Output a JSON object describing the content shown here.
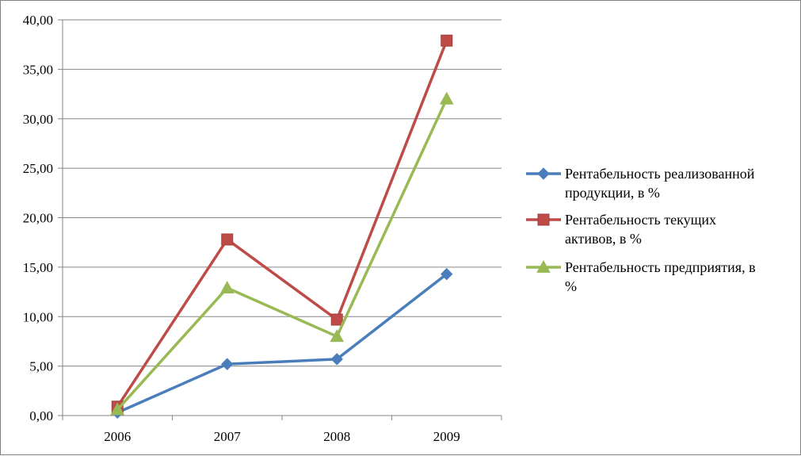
{
  "chart_data": {
    "type": "line",
    "categories": [
      "2006",
      "2007",
      "2008",
      "2009"
    ],
    "ylim": [
      0,
      40
    ],
    "yticks": [
      "0,00",
      "5,00",
      "10,00",
      "15,00",
      "20,00",
      "25,00",
      "30,00",
      "35,00",
      "40,00"
    ],
    "grid": true,
    "legend_position": "right",
    "series": [
      {
        "name": "Рентабельность реализованной продукции, в %",
        "name_lines": [
          "Рентабельность реализованной",
          "продукции, в %"
        ],
        "values": [
          0.3,
          5.2,
          5.7,
          14.3
        ],
        "color": "#4a7ebb",
        "marker": "diamond"
      },
      {
        "name": "Рентабельность текущих активов, в %",
        "name_lines": [
          "Рентабельность текущих",
          "активов, в %"
        ],
        "values": [
          0.9,
          17.8,
          9.7,
          37.9
        ],
        "color": "#be4b48",
        "marker": "square"
      },
      {
        "name": "Рентабельность предприятия, в %",
        "name_lines": [
          "Рентабельность предприятия, в",
          "%"
        ],
        "values": [
          0.6,
          12.9,
          8.0,
          32.0
        ],
        "color": "#98b954",
        "marker": "triangle"
      }
    ]
  }
}
